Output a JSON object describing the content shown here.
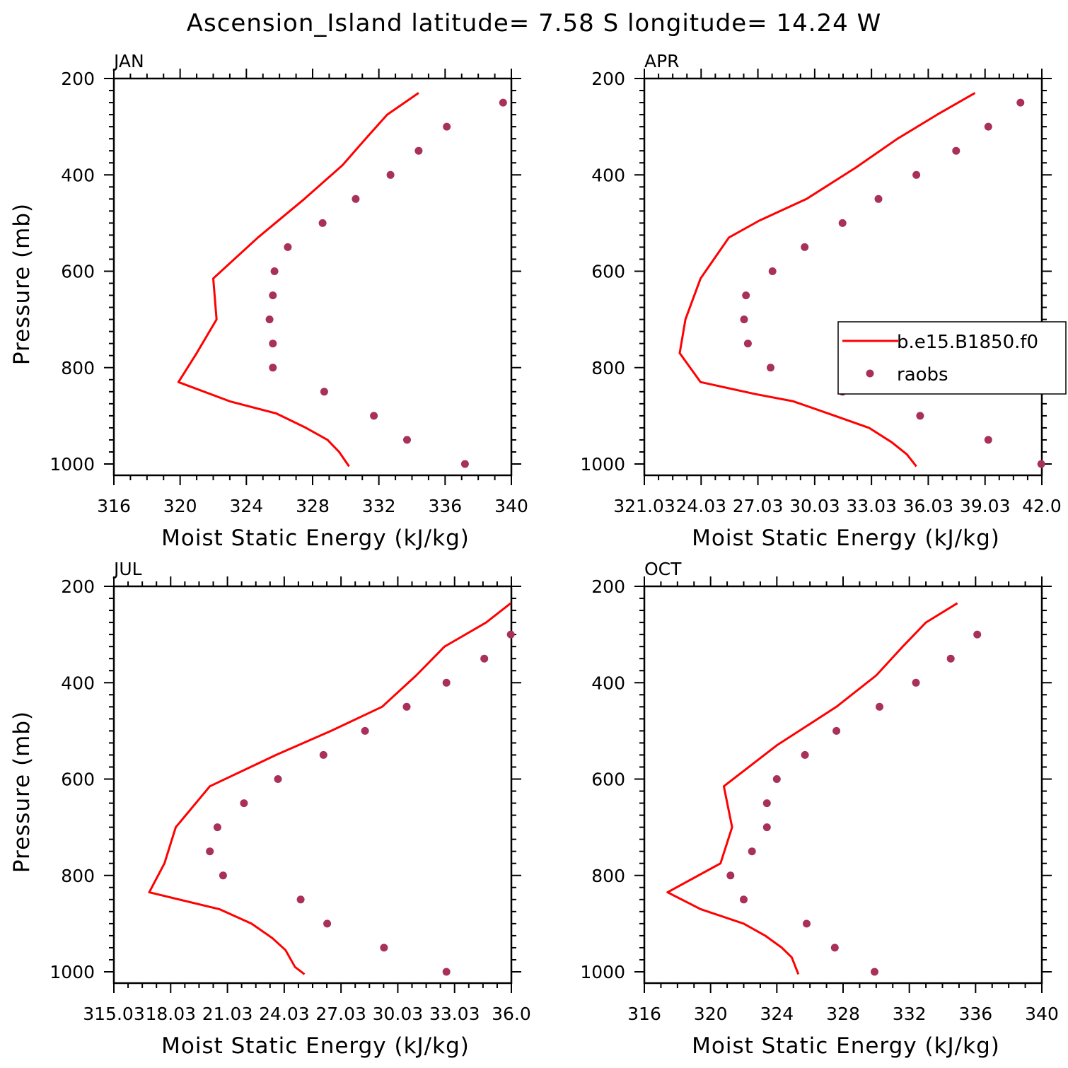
{
  "figure": {
    "title": "Ascension_Island  latitude= 7.58 S longitude= 14.24 W"
  },
  "colors": {
    "model": "#ff0000",
    "obs": "#a8305a",
    "axis": "#000000"
  },
  "legend": {
    "model_label": "b.e15.B1850.f0",
    "obs_label": "raobs"
  },
  "chart_data": [
    {
      "type": "line",
      "panel": "JAN",
      "xlabel": "Moist Static Energy (kJ/kg)",
      "ylabel": "Pressure (mb)",
      "xlim": [
        316,
        340
      ],
      "ylim": [
        1000,
        200
      ],
      "xticks": [
        316,
        320,
        324,
        328,
        332,
        336,
        340
      ],
      "xtick_labels": [
        "316",
        "320",
        "324",
        "328",
        "332",
        "336",
        "340"
      ],
      "yticks": [
        200,
        400,
        600,
        800,
        1000
      ],
      "ytick_labels": [
        "200",
        "400",
        "600",
        "800",
        "1000"
      ],
      "grid": false,
      "series": [
        {
          "style": "line",
          "x": [
            334.4,
            332.5,
            331.2,
            329.8,
            327.5,
            324.7,
            322.0,
            322.2,
            321.0,
            319.9,
            323.0,
            325.8,
            327.6,
            328.9,
            329.6,
            330.2
          ],
          "y": [
            230,
            275,
            325,
            380,
            450,
            530,
            615,
            700,
            770,
            830,
            870,
            895,
            925,
            950,
            975,
            1005
          ]
        },
        {
          "style": "markers",
          "x": [
            339.5,
            336.1,
            334.4,
            332.7,
            330.6,
            328.6,
            326.5,
            325.7,
            325.6,
            325.4,
            325.6,
            325.6,
            328.7,
            331.7,
            333.7,
            337.2
          ],
          "y": [
            250,
            300,
            350,
            400,
            450,
            500,
            550,
            600,
            650,
            700,
            750,
            800,
            850,
            900,
            950,
            1000
          ]
        }
      ]
    },
    {
      "type": "line",
      "panel": "APR",
      "xlabel": "Moist Static Energy (kJ/kg)",
      "ylabel": "",
      "xlim": [
        321.03,
        342.03
      ],
      "ylim": [
        1000,
        200
      ],
      "xticks": [
        321.03,
        324.03,
        327.03,
        330.03,
        333.03,
        336.03,
        339.03,
        342.03
      ],
      "xtick_labels": [
        "321.03",
        "24.03",
        "27.03",
        "30.03",
        "33.03",
        "36.03",
        "39.03",
        "42.0"
      ],
      "yticks": [
        200,
        400,
        600,
        800,
        1000
      ],
      "ytick_labels": [
        "200",
        "400",
        "600",
        "800",
        "1000"
      ],
      "grid": false,
      "legend_position": "right",
      "series": [
        {
          "style": "line",
          "x": [
            338.5,
            336.5,
            334.4,
            332.2,
            329.6,
            327.1,
            325.5,
            324.0,
            323.2,
            322.9,
            324.0,
            326.9,
            328.9,
            331.1,
            332.9,
            334.1,
            334.9,
            335.4
          ],
          "y": [
            230,
            275,
            325,
            385,
            450,
            495,
            530,
            615,
            700,
            770,
            830,
            855,
            870,
            900,
            925,
            955,
            980,
            1005
          ]
        },
        {
          "style": "markers",
          "x": [
            340.9,
            339.2,
            337.5,
            335.4,
            333.4,
            331.5,
            329.5,
            327.8,
            326.4,
            326.3,
            326.5,
            327.7,
            331.5,
            335.6,
            339.2,
            342.0
          ],
          "y": [
            250,
            300,
            350,
            400,
            450,
            500,
            550,
            600,
            650,
            700,
            750,
            800,
            850,
            900,
            950,
            1000
          ]
        }
      ]
    },
    {
      "type": "line",
      "panel": "JUL",
      "xlabel": "Moist Static Energy (kJ/kg)",
      "ylabel": "Pressure (mb)",
      "xlim": [
        315.03,
        336.03
      ],
      "ylim": [
        1000,
        200
      ],
      "xticks": [
        315.03,
        318.03,
        321.03,
        324.03,
        327.03,
        330.03,
        333.03,
        336.03
      ],
      "xtick_labels": [
        "315.03",
        "18.03",
        "21.03",
        "24.03",
        "27.03",
        "30.03",
        "33.03",
        "36.0"
      ],
      "yticks": [
        200,
        400,
        600,
        800,
        1000
      ],
      "ytick_labels": [
        "200",
        "400",
        "600",
        "800",
        "1000"
      ],
      "grid": false,
      "series": [
        {
          "style": "line",
          "x": [
            336.0,
            334.7,
            332.5,
            331.0,
            329.2,
            326.5,
            323.6,
            320.1,
            318.3,
            317.7,
            316.9,
            320.6,
            322.3,
            323.4,
            324.1,
            324.6,
            325.1
          ],
          "y": [
            235,
            275,
            325,
            385,
            450,
            500,
            550,
            615,
            700,
            775,
            835,
            870,
            900,
            930,
            955,
            990,
            1005
          ]
        },
        {
          "style": "markers",
          "x": [
            336.0,
            334.6,
            332.6,
            330.5,
            328.3,
            326.1,
            323.7,
            321.9,
            320.5,
            320.1,
            320.8,
            324.9,
            326.3,
            329.3,
            332.6
          ],
          "y": [
            300,
            350,
            400,
            450,
            500,
            550,
            600,
            650,
            700,
            750,
            800,
            850,
            900,
            950,
            1000
          ]
        }
      ]
    },
    {
      "type": "line",
      "panel": "OCT",
      "xlabel": "Moist Static Energy (kJ/kg)",
      "ylabel": "",
      "xlim": [
        316,
        340
      ],
      "ylim": [
        1000,
        200
      ],
      "xticks": [
        316,
        320,
        324,
        328,
        332,
        336,
        340
      ],
      "xtick_labels": [
        "316",
        "320",
        "324",
        "328",
        "332",
        "336",
        "340"
      ],
      "yticks": [
        200,
        400,
        600,
        800,
        1000
      ],
      "ytick_labels": [
        "200",
        "400",
        "600",
        "800",
        "1000"
      ],
      "grid": false,
      "series": [
        {
          "style": "line",
          "x": [
            334.9,
            333.0,
            331.6,
            330.0,
            327.6,
            324.0,
            320.8,
            321.3,
            320.6,
            317.4,
            319.4,
            322.0,
            323.3,
            324.3,
            324.9,
            325.3
          ],
          "y": [
            235,
            275,
            325,
            385,
            450,
            530,
            615,
            700,
            775,
            835,
            870,
            900,
            925,
            950,
            970,
            1005
          ]
        },
        {
          "style": "markers",
          "x": [
            336.1,
            334.5,
            332.4,
            330.2,
            327.6,
            325.7,
            324.0,
            323.4,
            323.4,
            322.5,
            321.2,
            322.0,
            325.8,
            327.5,
            329.9
          ],
          "y": [
            300,
            350,
            400,
            450,
            500,
            550,
            600,
            650,
            700,
            750,
            800,
            850,
            900,
            950,
            1000
          ]
        }
      ]
    }
  ]
}
